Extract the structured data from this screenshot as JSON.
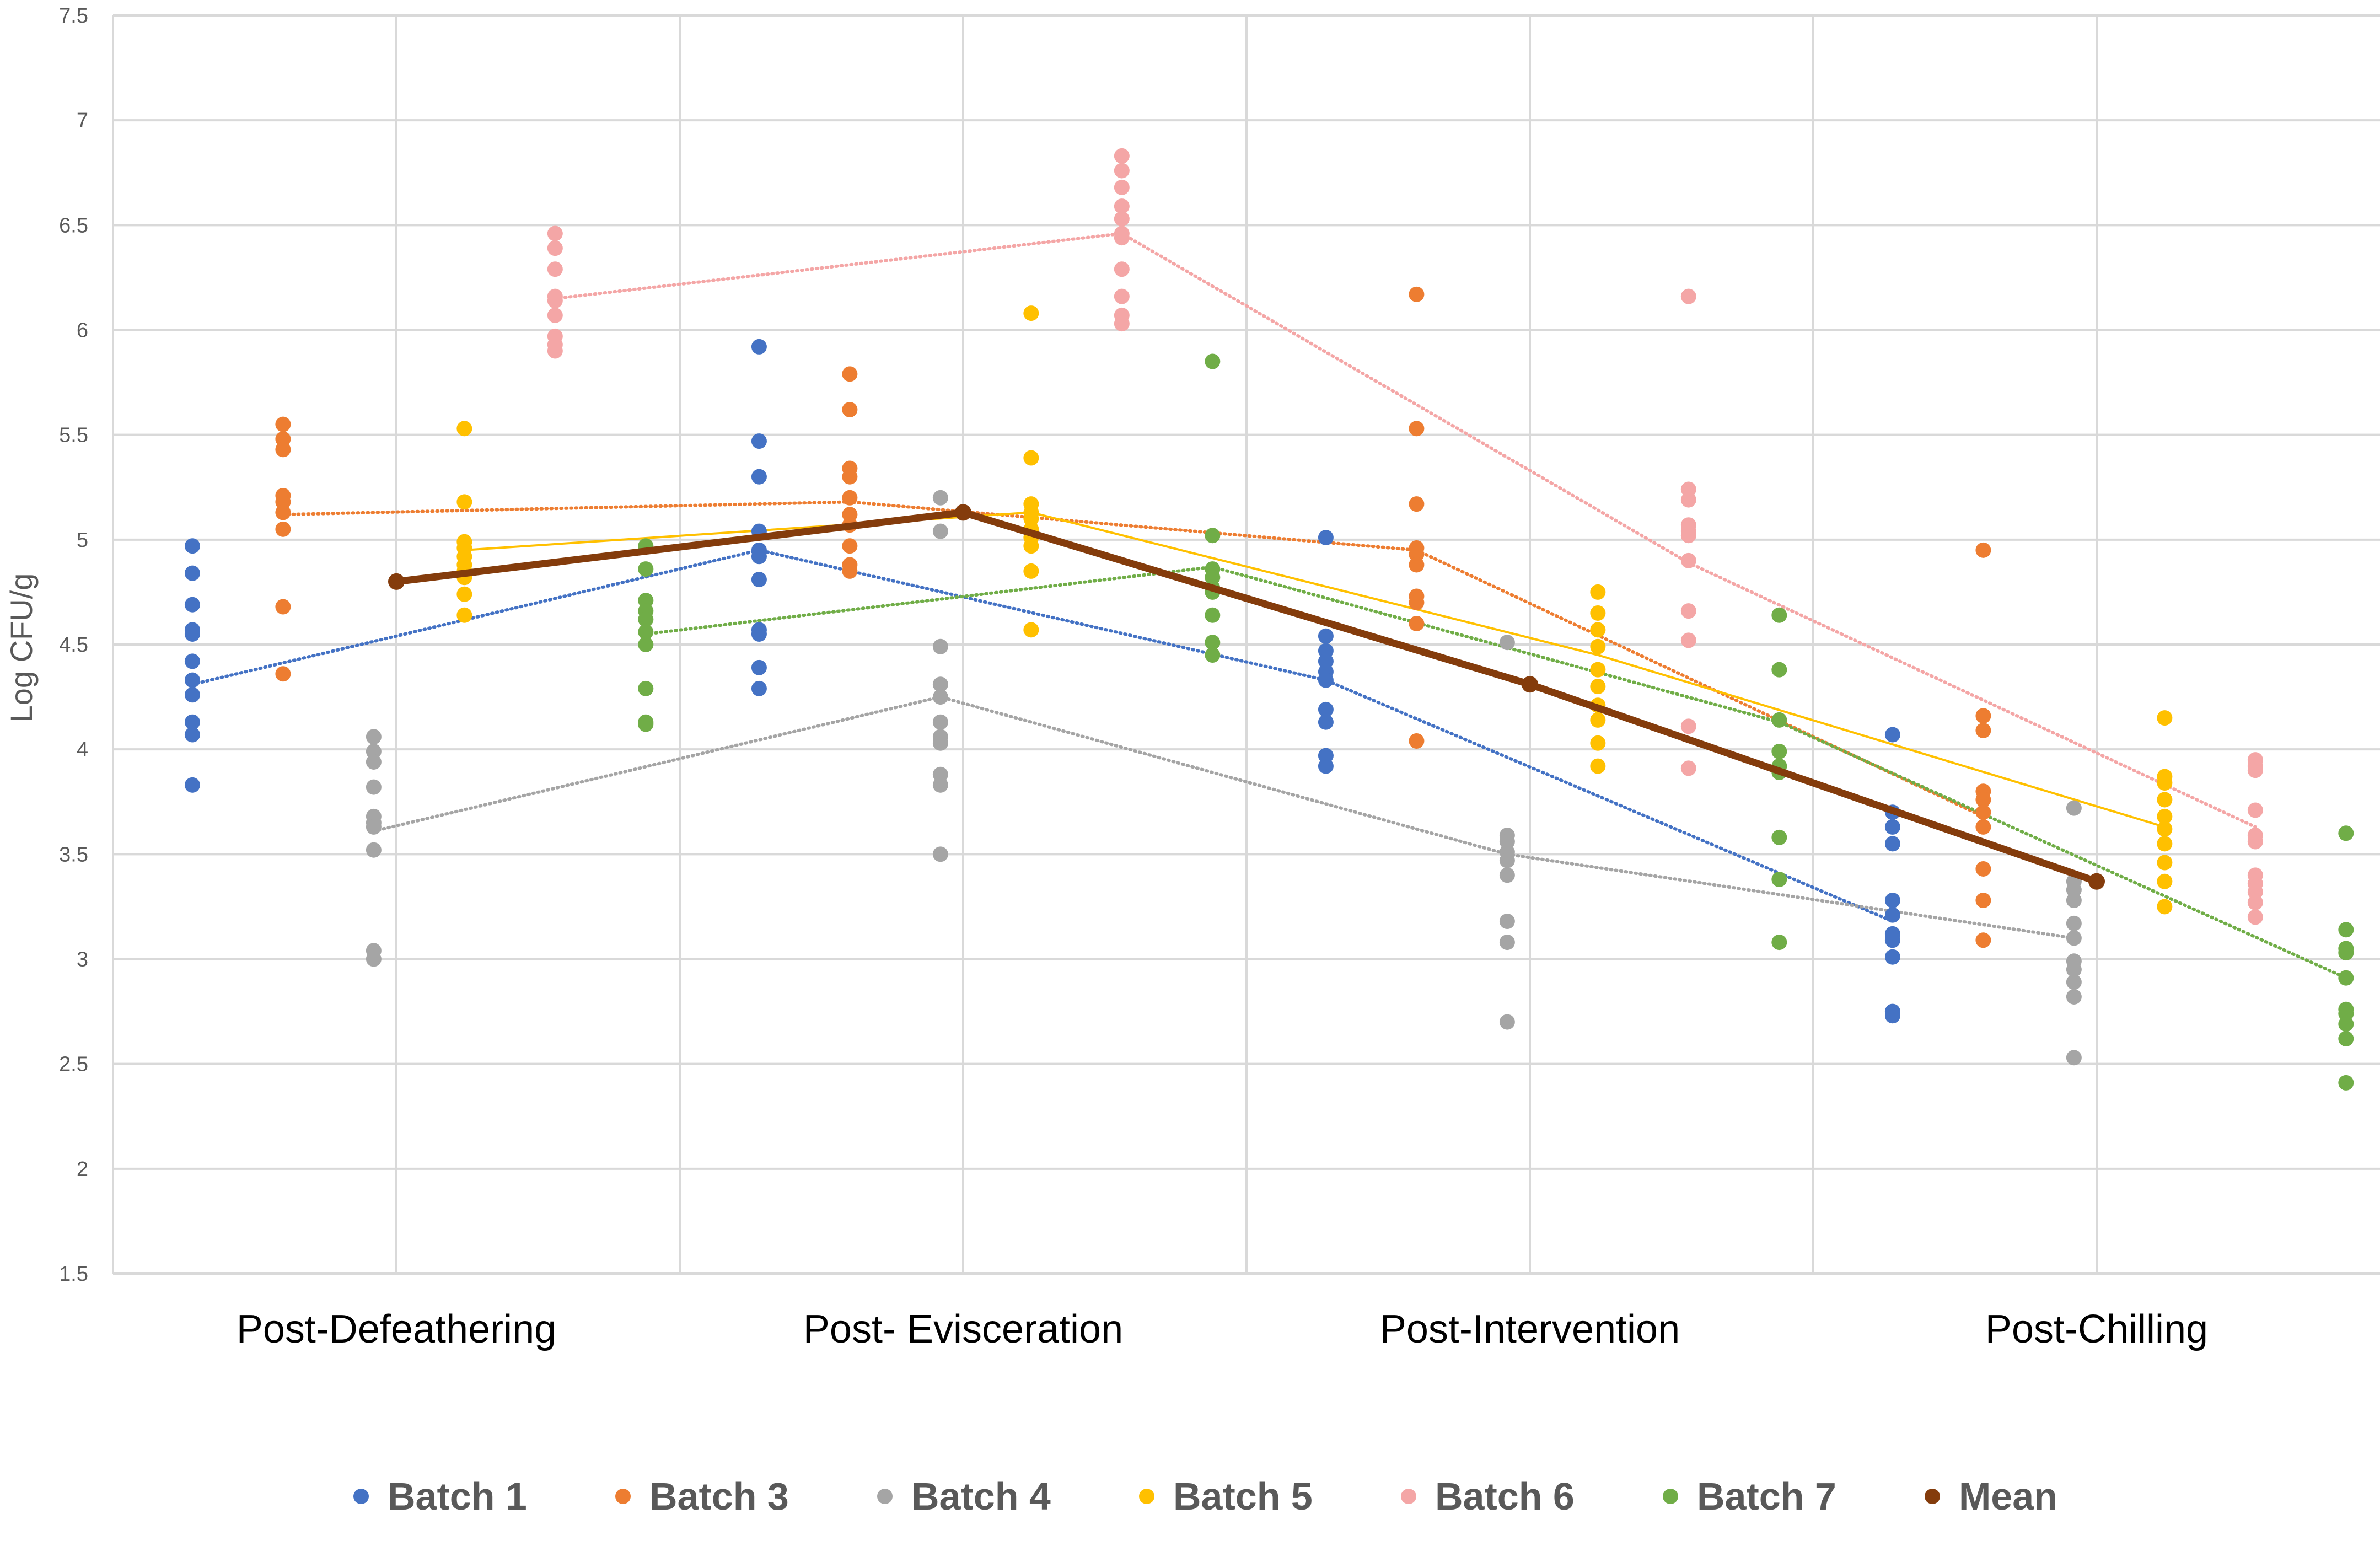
{
  "chart_data": {
    "type": "scatter",
    "title": "",
    "xlabel": "",
    "ylabel": "Log CFU/g",
    "ylim": [
      1.5,
      7.5
    ],
    "ytick_step": 0.5,
    "yticks": [
      "1.5",
      "2",
      "2.5",
      "3",
      "3.5",
      "4",
      "4.5",
      "5",
      "5.5",
      "6",
      "6.5",
      "7",
      "7.5"
    ],
    "categories": [
      "Post-Defeathering",
      "Post- Evisceration",
      "Post-Intervention",
      "Post-Chilling"
    ],
    "grid": true,
    "legend_position": "bottom",
    "series": [
      {
        "name": "Batch 1",
        "color": "#4472C4",
        "offset": -0.36,
        "trend": "dotted",
        "points": [
          [
            4.97,
            4.84,
            4.69,
            4.57,
            4.55,
            4.42,
            4.33,
            4.26,
            4.13,
            4.07,
            3.83
          ],
          [
            5.92,
            5.47,
            5.3,
            5.04,
            4.95,
            4.92,
            4.81,
            4.57,
            4.55,
            4.39,
            4.29
          ],
          [
            5.01,
            4.54,
            4.47,
            4.42,
            4.37,
            4.33,
            4.19,
            4.13,
            3.97,
            3.92
          ],
          [
            4.07,
            3.7,
            3.63,
            3.55,
            3.28,
            3.21,
            3.12,
            3.09,
            3.01,
            2.75,
            2.73
          ]
        ],
        "means": [
          4.31,
          4.95,
          4.33,
          3.18
        ]
      },
      {
        "name": "Batch 3",
        "color": "#ED7D31",
        "offset": -0.2,
        "trend": "dotted",
        "points": [
          [
            5.55,
            5.48,
            5.43,
            5.21,
            5.18,
            5.13,
            5.05,
            4.68,
            4.36
          ],
          [
            5.79,
            5.62,
            5.34,
            5.3,
            5.2,
            5.12,
            5.07,
            4.97,
            4.88,
            4.85
          ],
          [
            6.17,
            5.53,
            5.17,
            4.96,
            4.93,
            4.88,
            4.73,
            4.7,
            4.6,
            4.04
          ],
          [
            4.95,
            4.16,
            4.09,
            3.8,
            3.76,
            3.7,
            3.63,
            3.43,
            3.28,
            3.09
          ]
        ],
        "means": [
          5.12,
          5.18,
          4.95,
          3.68
        ]
      },
      {
        "name": "Batch 4",
        "color": "#A5A5A5",
        "offset": -0.04,
        "trend": "dotted",
        "points": [
          [
            4.06,
            3.99,
            3.94,
            3.82,
            3.68,
            3.65,
            3.63,
            3.52,
            3.04,
            3.0
          ],
          [
            5.2,
            5.04,
            4.49,
            4.31,
            4.25,
            4.13,
            4.06,
            4.03,
            3.88,
            3.83,
            3.5
          ],
          [
            4.51,
            3.59,
            3.56,
            3.51,
            3.47,
            3.4,
            3.18,
            3.08,
            2.7
          ],
          [
            3.72,
            3.37,
            3.33,
            3.28,
            3.17,
            3.1,
            2.99,
            2.95,
            2.89,
            2.82,
            2.53
          ]
        ],
        "means": [
          3.61,
          4.25,
          3.5,
          3.1
        ]
      },
      {
        "name": "Batch 5",
        "color": "#FFC000",
        "offset": 0.12,
        "trend": "solid",
        "points": [
          [
            5.53,
            5.18,
            4.99,
            4.96,
            4.92,
            4.88,
            4.85,
            4.82,
            4.74,
            4.64
          ],
          [
            6.08,
            5.39,
            5.17,
            5.13,
            5.1,
            5.05,
            5.01,
            4.97,
            4.85,
            4.57
          ],
          [
            4.75,
            4.65,
            4.57,
            4.49,
            4.38,
            4.3,
            4.21,
            4.14,
            4.03,
            3.92
          ],
          [
            4.15,
            3.87,
            3.84,
            3.76,
            3.68,
            3.62,
            3.55,
            3.46,
            3.37,
            3.25
          ]
        ],
        "means": [
          4.95,
          5.13,
          4.45,
          3.63
        ]
      },
      {
        "name": "Batch 6",
        "color": "#F4A6A6",
        "offset": 0.28,
        "trend": "dotted",
        "points": [
          [
            6.46,
            6.39,
            6.29,
            6.16,
            6.14,
            6.07,
            5.97,
            5.93,
            5.9
          ],
          [
            6.83,
            6.76,
            6.68,
            6.59,
            6.53,
            6.46,
            6.44,
            6.29,
            6.16,
            6.07,
            6.03
          ],
          [
            6.16,
            5.24,
            5.19,
            5.07,
            5.04,
            5.02,
            4.9,
            4.66,
            4.52,
            4.11,
            3.91
          ],
          [
            3.95,
            3.92,
            3.9,
            3.71,
            3.59,
            3.56,
            3.4,
            3.36,
            3.32,
            3.27,
            3.2
          ]
        ],
        "means": [
          6.15,
          6.46,
          4.89,
          3.63
        ]
      },
      {
        "name": "Batch 7",
        "color": "#70AD47",
        "offset": 0.44,
        "trend": "dotted",
        "points": [
          [
            4.97,
            4.86,
            4.71,
            4.66,
            4.62,
            4.56,
            4.5,
            4.29,
            4.13,
            4.12
          ],
          [
            5.85,
            5.02,
            4.86,
            4.82,
            4.77,
            4.75,
            4.64,
            4.51,
            4.45
          ],
          [
            4.64,
            4.38,
            4.14,
            3.99,
            3.92,
            3.89,
            3.58,
            3.38,
            3.08
          ],
          [
            3.6,
            3.14,
            3.05,
            3.03,
            2.91,
            2.76,
            2.74,
            2.69,
            2.62,
            2.41
          ]
        ],
        "means": [
          4.55,
          4.87,
          4.13,
          2.91
        ]
      }
    ],
    "mean_series": {
      "name": "Mean",
      "color": "#843C0C",
      "values": [
        4.8,
        5.13,
        4.31,
        3.37
      ]
    }
  }
}
